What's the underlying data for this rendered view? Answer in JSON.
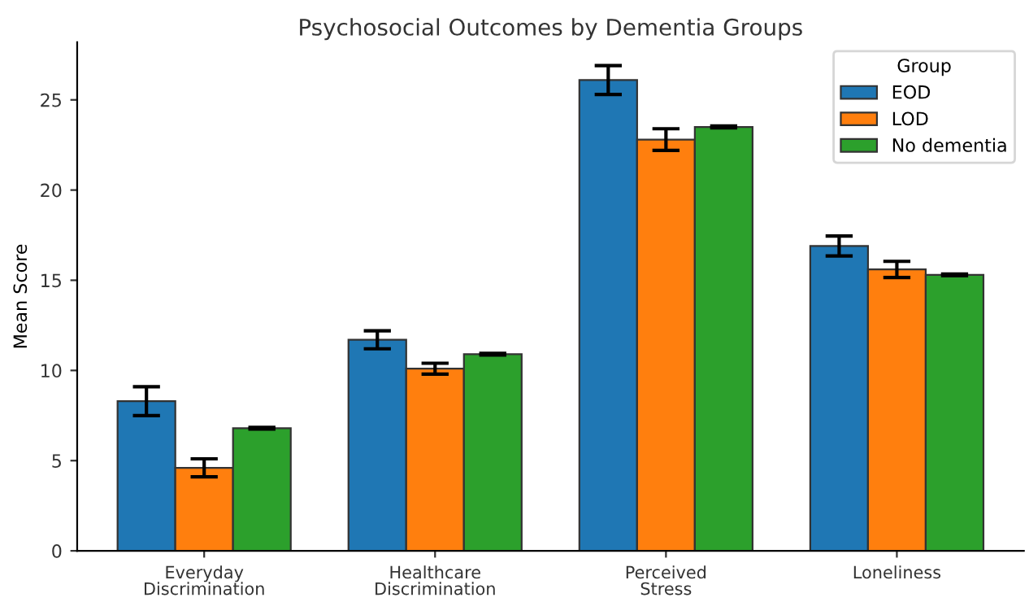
{
  "chart_data": {
    "type": "bar",
    "title": "Psychosocial Outcomes by Dementia Groups",
    "ylabel": "Mean Score",
    "legend_title": "Group",
    "categories": [
      "Everyday\nDiscrimination",
      "Healthcare\nDiscrimination",
      "Perceived\nStress",
      "Loneliness"
    ],
    "series": [
      {
        "name": "EOD",
        "color": "#1f77b4",
        "values": [
          8.3,
          11.7,
          26.1,
          16.9
        ],
        "errors": [
          0.8,
          0.5,
          0.8,
          0.55
        ]
      },
      {
        "name": "LOD",
        "color": "#ff7f0e",
        "values": [
          4.6,
          10.1,
          22.8,
          15.6
        ],
        "errors": [
          0.5,
          0.3,
          0.6,
          0.45
        ]
      },
      {
        "name": "No dementia",
        "color": "#2ca02c",
        "values": [
          6.8,
          10.9,
          23.5,
          15.3
        ],
        "errors": [
          0.05,
          0.05,
          0.05,
          0.05
        ]
      }
    ],
    "ylim": [
      0,
      28.2
    ],
    "yticks": [
      0,
      5,
      10,
      15,
      20,
      25
    ],
    "grid": false,
    "legend": "top right"
  }
}
